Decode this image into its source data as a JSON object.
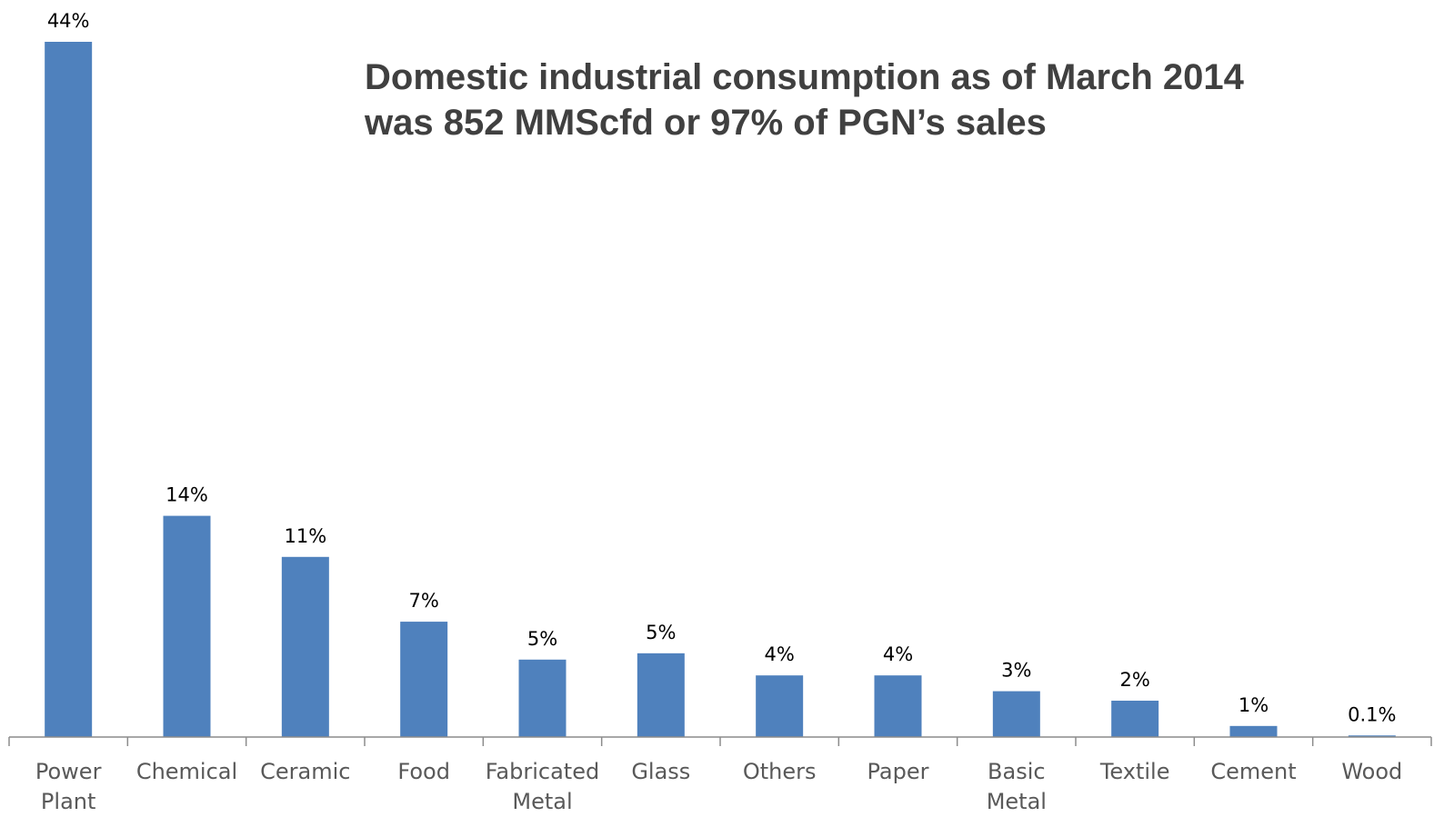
{
  "chart_data": {
    "type": "bar",
    "title_lines": [
      "Domestic industrial consumption as of March 2014",
      "was 852 MMScfd or 97% of PGN’s sales"
    ],
    "categories": [
      [
        "Power",
        "Plant"
      ],
      [
        "Chemical"
      ],
      [
        "Ceramic"
      ],
      [
        "Food"
      ],
      [
        "Fabricated",
        "Metal"
      ],
      [
        "Glass"
      ],
      [
        "Others"
      ],
      [
        "Paper"
      ],
      [
        "Basic",
        "Metal"
      ],
      [
        "Textile"
      ],
      [
        "Cement"
      ],
      [
        "Wood"
      ]
    ],
    "values": [
      44,
      14,
      11.4,
      7.3,
      4.9,
      5.3,
      3.9,
      3.9,
      2.9,
      2.3,
      0.7,
      0.1
    ],
    "data_labels": [
      "44%",
      "14%",
      "11%",
      "7%",
      "5%",
      "5%",
      "4%",
      "4%",
      "3%",
      "2%",
      "1%",
      "0.1%"
    ],
    "ylim": [
      0,
      44
    ],
    "y_axis_visible": false,
    "grid": false,
    "legend": "none",
    "bar_color": "#4f81bd",
    "axis_color": "#8c8c8c",
    "label_color": "#595959",
    "data_label_color": "#000000"
  }
}
